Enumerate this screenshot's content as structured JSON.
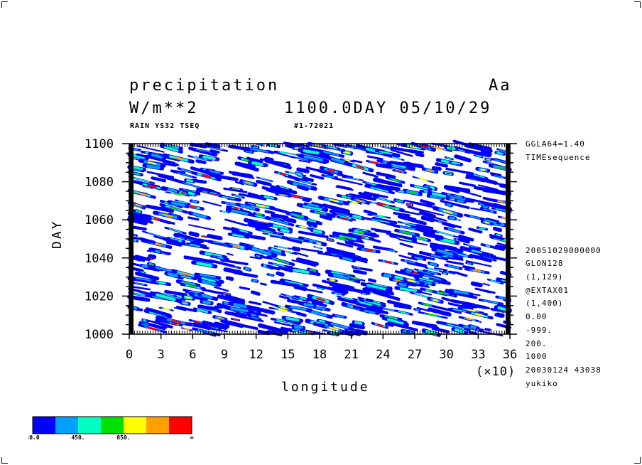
{
  "header": {
    "title": "precipitation",
    "corner_tag": "Aa",
    "units": "W/m**2",
    "time_label": "1100.0DAY 05/10/29",
    "subtitle_left": "RAIN YS32 TSEQ",
    "subtitle_center": "#1-72021"
  },
  "side_info": {
    "top": [
      "GGLA64=1.40",
      "TIMEsequence"
    ],
    "bottom": [
      "20051029000000",
      "GLON128",
      "(1,129)",
      "@EXTAX01",
      "(1,400)",
      "0.00",
      "-999.",
      "200.",
      "1000",
      "20030124  43038",
      "yukiko"
    ]
  },
  "legend": {
    "colors": [
      "#0000ff",
      "#00a0ff",
      "#00ffc0",
      "#00e000",
      "#ffff00",
      "#ffa000",
      "#ff0000"
    ],
    "labels": [
      "50.0",
      "450.",
      "850.",
      "∞"
    ]
  },
  "chart_data": {
    "type": "heatmap",
    "title": "precipitation",
    "xlabel": "longitude",
    "ylabel": "DAY",
    "x_multiplier_label": "(×10)",
    "xlim": [
      0,
      36
    ],
    "ylim": [
      1000,
      1100
    ],
    "x_ticks": [
      "0",
      "3",
      "6",
      "9",
      "12",
      "15",
      "18",
      "21",
      "24",
      "27",
      "30",
      "33",
      "36"
    ],
    "y_ticks": [
      "1000",
      "1020",
      "1040",
      "1060",
      "1080",
      "1100"
    ],
    "contour_levels": [
      50,
      250,
      450,
      650,
      850,
      1050
    ]
  }
}
